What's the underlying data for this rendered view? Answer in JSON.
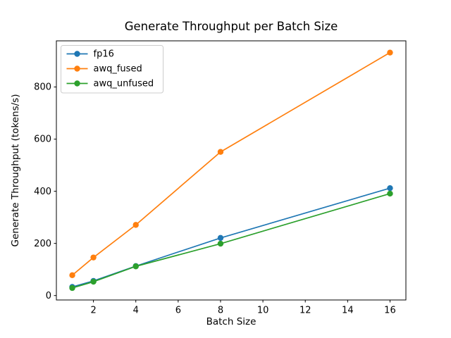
{
  "figure": {
    "background": "#ffffff",
    "text_color": "#000000",
    "spine_color": "#000000",
    "legend_border_color": "#cccccc"
  },
  "chart_data": {
    "type": "line",
    "title": "Generate Throughput per Batch Size",
    "xlabel": "Batch Size",
    "ylabel": "Generate Throughput (tokens/s)",
    "x": [
      1,
      2,
      4,
      8,
      16
    ],
    "series": [
      {
        "name": "fp16",
        "color": "#1f77b4",
        "values": [
          33,
          56,
          113,
          221,
          412
        ]
      },
      {
        "name": "awq_fused",
        "color": "#ff7f0e",
        "values": [
          78,
          146,
          271,
          551,
          932
        ]
      },
      {
        "name": "awq_unfused",
        "color": "#2ca02c",
        "values": [
          29,
          53,
          112,
          199,
          391
        ]
      }
    ],
    "xticks": [
      2,
      4,
      6,
      8,
      10,
      12,
      14,
      16
    ],
    "yticks": [
      0,
      200,
      400,
      600,
      800
    ],
    "xlim": [
      0.25,
      16.75
    ],
    "ylim": [
      -17,
      977
    ],
    "grid": false,
    "marker": "o",
    "legend_position": "upper left"
  }
}
